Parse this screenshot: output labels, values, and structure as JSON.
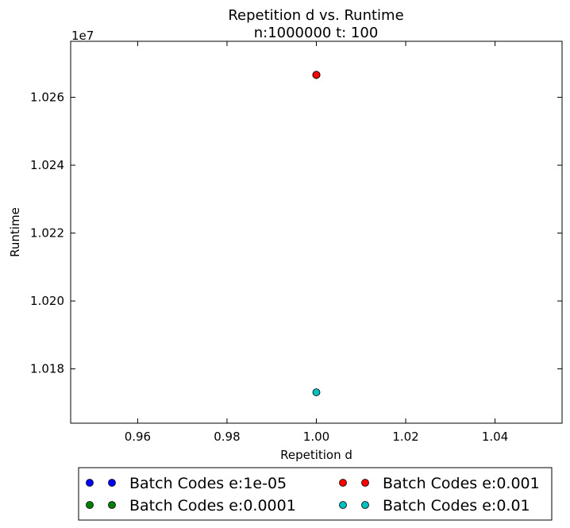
{
  "chart_data": {
    "type": "scatter",
    "title": "Repetition d vs. Runtime",
    "subtitle": "n:1000000 t: 100",
    "xlabel": "Repetition d",
    "ylabel": "Runtime",
    "y_offset_label": "1e7",
    "xlim": [
      0.945,
      1.055
    ],
    "ylim": [
      10164000,
      10276500
    ],
    "y_tick_scale": 10000000,
    "x_ticks": [
      0.96,
      0.98,
      1.0,
      1.02,
      1.04
    ],
    "x_tick_labels": [
      "0.96",
      "0.98",
      "1.00",
      "1.02",
      "1.04"
    ],
    "y_ticks": [
      10180000,
      10200000,
      10220000,
      10240000,
      10260000
    ],
    "y_tick_labels": [
      "1.018",
      "1.020",
      "1.022",
      "1.024",
      "1.026"
    ],
    "grid": false,
    "legend_position": "below-center",
    "legend_columns": 2,
    "series": [
      {
        "name": "Batch Codes e:1e-05",
        "color": "#0000ff",
        "x": [
          1.0
        ],
        "y": [
          10266600
        ]
      },
      {
        "name": "Batch Codes e:0.0001",
        "color": "#008000",
        "x": [
          1.0
        ],
        "y": [
          10266600
        ]
      },
      {
        "name": "Batch Codes e:0.001",
        "color": "#ff0000",
        "x": [
          1.0
        ],
        "y": [
          10266600
        ]
      },
      {
        "name": "Batch Codes e:0.01",
        "color": "#00bfbf",
        "x": [
          1.0
        ],
        "y": [
          10173100
        ]
      }
    ]
  }
}
